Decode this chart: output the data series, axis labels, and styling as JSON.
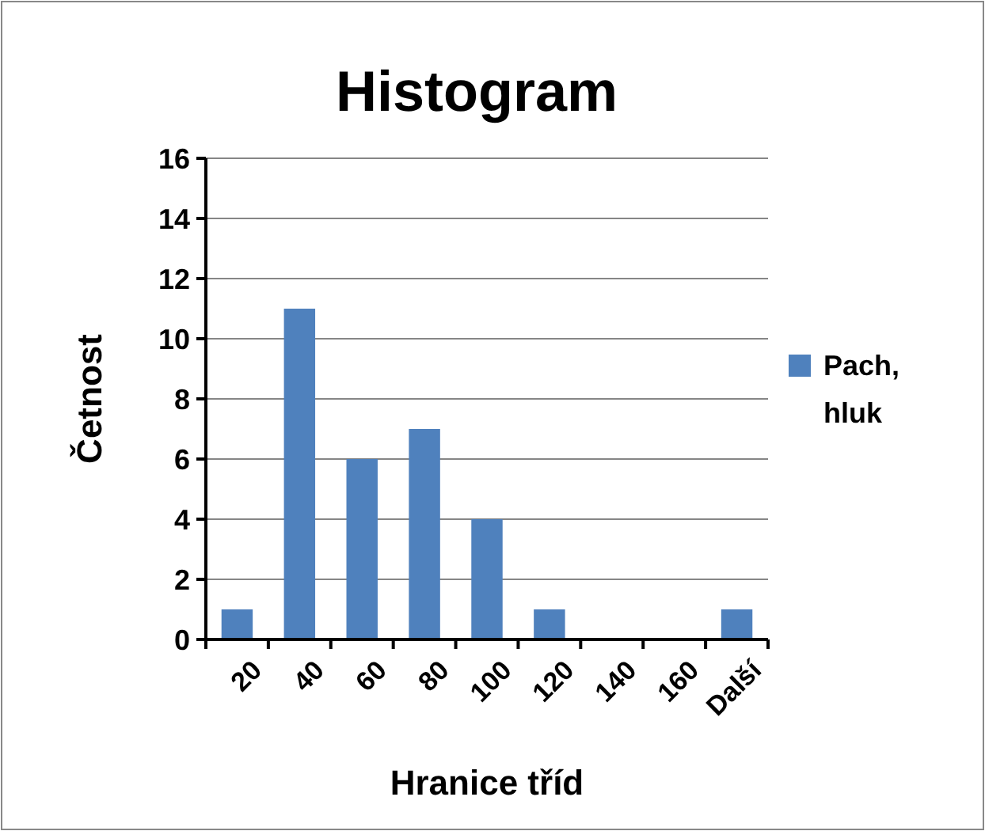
{
  "chart_data": {
    "type": "bar",
    "title": "Histogram",
    "xlabel": "Hranice tříd",
    "ylabel": "Četnost",
    "categories": [
      "20",
      "40",
      "60",
      "80",
      "100",
      "120",
      "140",
      "160",
      "Další"
    ],
    "series": [
      {
        "name": "Pach, hluk",
        "color": "#4f81bd",
        "values": [
          1,
          11,
          6,
          7,
          4,
          1,
          0,
          0,
          1
        ]
      }
    ],
    "ylim": [
      0,
      16
    ],
    "yticks": [
      0,
      2,
      4,
      6,
      8,
      10,
      12,
      14,
      16
    ],
    "grid": "y",
    "legend": "right"
  }
}
